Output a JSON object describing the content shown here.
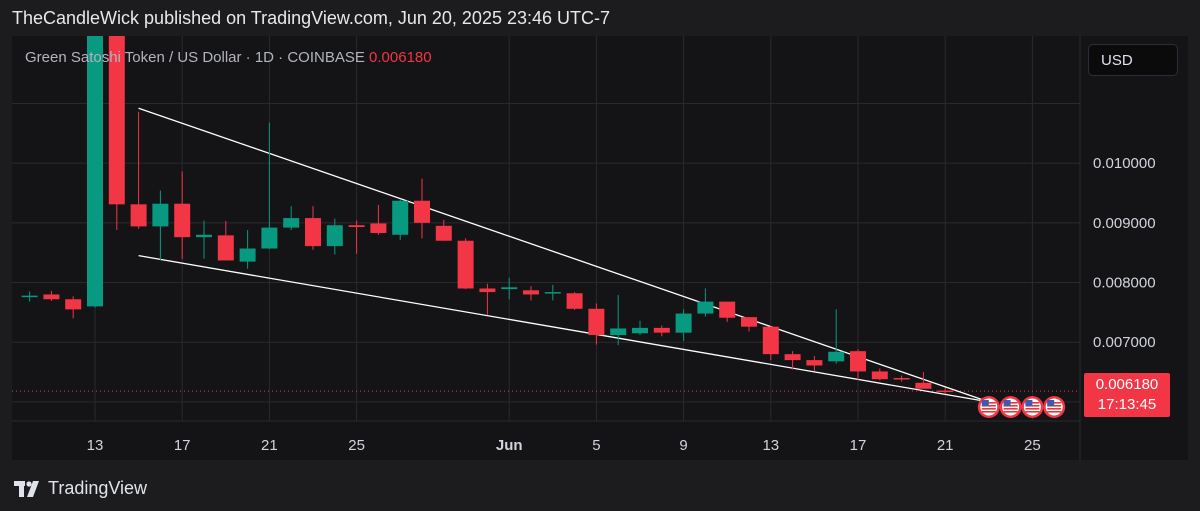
{
  "header": {
    "published": "TheCandleWick published on TradingView.com, Jun 20, 2025 23:46 UTC-7"
  },
  "legend": {
    "symbol": "Green Satoshi Token / US Dollar · 1D · COINBASE",
    "last_price": "0.006180"
  },
  "currency_button": "USD",
  "price_tag": {
    "price": "0.006180",
    "countdown": "17:13:45"
  },
  "footer": {
    "brand": "TradingView"
  },
  "colors": {
    "up": "#089981",
    "down": "#f23645",
    "grid": "#2a2a2e",
    "text": "#d1d4dc",
    "line": "#ffffff"
  },
  "chart_data": {
    "type": "candlestick",
    "x_ticks": [
      "13",
      "17",
      "21",
      "25",
      "Jun",
      "5",
      "9",
      "13",
      "17",
      "21",
      "25"
    ],
    "y_ticks": [
      "0.010000",
      "0.009000",
      "0.008000",
      "0.007000"
    ],
    "ylim": [
      0.00568,
      0.01213
    ],
    "grid": true,
    "candles": [
      {
        "date": "May 10",
        "open": 0.00777,
        "high": 0.00785,
        "low": 0.00768,
        "close": 0.00778
      },
      {
        "date": "May 11",
        "open": 0.0078,
        "high": 0.00786,
        "low": 0.00769,
        "close": 0.00772
      },
      {
        "date": "May 12",
        "open": 0.00772,
        "high": 0.00777,
        "low": 0.0074,
        "close": 0.00755
      },
      {
        "date": "May 13",
        "open": 0.0076,
        "high": 0.01213,
        "low": 0.00758,
        "close": 0.01213
      },
      {
        "date": "May 14",
        "open": 0.01213,
        "high": 0.01213,
        "low": 0.00888,
        "close": 0.00931
      },
      {
        "date": "May 15",
        "open": 0.00931,
        "high": 0.01086,
        "low": 0.0089,
        "close": 0.00894
      },
      {
        "date": "May 16",
        "open": 0.00894,
        "high": 0.00954,
        "low": 0.00837,
        "close": 0.00932
      },
      {
        "date": "May 17",
        "open": 0.00932,
        "high": 0.00986,
        "low": 0.00839,
        "close": 0.00876
      },
      {
        "date": "May 18",
        "open": 0.00876,
        "high": 0.00904,
        "low": 0.0084,
        "close": 0.0088
      },
      {
        "date": "May 19",
        "open": 0.00879,
        "high": 0.00903,
        "low": 0.0084,
        "close": 0.00837
      },
      {
        "date": "May 20",
        "open": 0.00835,
        "high": 0.00888,
        "low": 0.00823,
        "close": 0.00857
      },
      {
        "date": "May 21",
        "open": 0.00857,
        "high": 0.01068,
        "low": 0.00856,
        "close": 0.00892
      },
      {
        "date": "May 22",
        "open": 0.00892,
        "high": 0.00928,
        "low": 0.00888,
        "close": 0.00908
      },
      {
        "date": "May 23",
        "open": 0.00908,
        "high": 0.00928,
        "low": 0.00855,
        "close": 0.00861
      },
      {
        "date": "May 24",
        "open": 0.00861,
        "high": 0.00907,
        "low": 0.00847,
        "close": 0.00896
      },
      {
        "date": "May 25",
        "open": 0.00896,
        "high": 0.00904,
        "low": 0.00848,
        "close": 0.00893
      },
      {
        "date": "May 26",
        "open": 0.00899,
        "high": 0.0093,
        "low": 0.0088,
        "close": 0.00883
      },
      {
        "date": "May 27",
        "open": 0.0088,
        "high": 0.0094,
        "low": 0.00871,
        "close": 0.00937
      },
      {
        "date": "May 28",
        "open": 0.00937,
        "high": 0.00974,
        "low": 0.00874,
        "close": 0.009
      },
      {
        "date": "May 29",
        "open": 0.00895,
        "high": 0.00905,
        "low": 0.0087,
        "close": 0.0087
      },
      {
        "date": "May 30",
        "open": 0.0087,
        "high": 0.00874,
        "low": 0.00789,
        "close": 0.0079
      },
      {
        "date": "May 31",
        "open": 0.0079,
        "high": 0.00798,
        "low": 0.00746,
        "close": 0.00784
      },
      {
        "date": "Jun 1",
        "open": 0.00789,
        "high": 0.00808,
        "low": 0.00772,
        "close": 0.00792
      },
      {
        "date": "Jun 2",
        "open": 0.00787,
        "high": 0.00794,
        "low": 0.0077,
        "close": 0.0078
      },
      {
        "date": "Jun 3",
        "open": 0.00782,
        "high": 0.00796,
        "low": 0.0077,
        "close": 0.00784
      },
      {
        "date": "Jun 4",
        "open": 0.00782,
        "high": 0.00784,
        "low": 0.00754,
        "close": 0.00756
      },
      {
        "date": "Jun 5",
        "open": 0.00756,
        "high": 0.00765,
        "low": 0.00696,
        "close": 0.00712
      },
      {
        "date": "Jun 6",
        "open": 0.00712,
        "high": 0.00779,
        "low": 0.00695,
        "close": 0.00723
      },
      {
        "date": "Jun 7",
        "open": 0.00715,
        "high": 0.00736,
        "low": 0.00712,
        "close": 0.00724
      },
      {
        "date": "Jun 8",
        "open": 0.00724,
        "high": 0.00728,
        "low": 0.0071,
        "close": 0.00716
      },
      {
        "date": "Jun 9",
        "open": 0.00716,
        "high": 0.00755,
        "low": 0.00702,
        "close": 0.00748
      },
      {
        "date": "Jun 10",
        "open": 0.00748,
        "high": 0.0079,
        "low": 0.00743,
        "close": 0.00768
      },
      {
        "date": "Jun 11",
        "open": 0.00768,
        "high": 0.00768,
        "low": 0.00734,
        "close": 0.00741
      },
      {
        "date": "Jun 12",
        "open": 0.00742,
        "high": 0.00742,
        "low": 0.00718,
        "close": 0.00726
      },
      {
        "date": "Jun 13",
        "open": 0.00726,
        "high": 0.00727,
        "low": 0.0067,
        "close": 0.0068
      },
      {
        "date": "Jun 14",
        "open": 0.0068,
        "high": 0.00685,
        "low": 0.00654,
        "close": 0.0067
      },
      {
        "date": "Jun 15",
        "open": 0.0067,
        "high": 0.00677,
        "low": 0.00652,
        "close": 0.00661
      },
      {
        "date": "Jun 16",
        "open": 0.00668,
        "high": 0.00755,
        "low": 0.00664,
        "close": 0.00684
      },
      {
        "date": "Jun 17",
        "open": 0.00685,
        "high": 0.00688,
        "low": 0.00637,
        "close": 0.00651
      },
      {
        "date": "Jun 18",
        "open": 0.00651,
        "high": 0.00656,
        "low": 0.00636,
        "close": 0.00638
      },
      {
        "date": "Jun 19",
        "open": 0.0064,
        "high": 0.00644,
        "low": 0.00634,
        "close": 0.00638
      },
      {
        "date": "Jun 20",
        "open": 0.00632,
        "high": 0.0065,
        "low": 0.00623,
        "close": 0.00622
      },
      {
        "date": "Jun 21",
        "open": 0.00619,
        "high": 0.00624,
        "low": 0.00613,
        "close": 0.00618
      }
    ],
    "trendlines": [
      {
        "name": "upper",
        "points": [
          [
            "May 15",
            0.01092
          ],
          [
            "Jun 23",
            0.006
          ]
        ]
      },
      {
        "name": "lower",
        "points": [
          [
            "May 15",
            0.00845
          ],
          [
            "Jun 23",
            0.006
          ]
        ]
      }
    ],
    "last_price_line": 0.00618,
    "event_markers": [
      "Jun 23",
      "Jun 24",
      "Jun 25",
      "Jun 26"
    ]
  }
}
